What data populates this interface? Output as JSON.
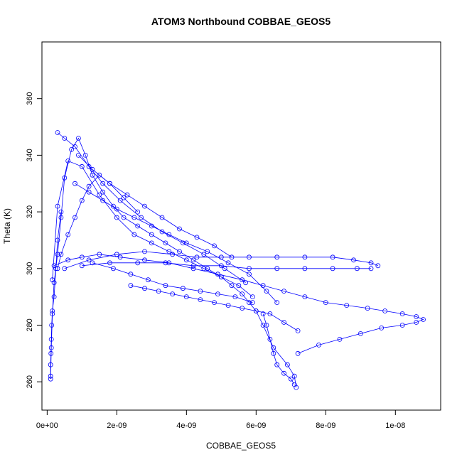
{
  "chart_data": {
    "type": "scatter",
    "title": "ATOM3 Northbound COBBAE_GEOS5",
    "xlabel": "COBBAE_GEOS5",
    "ylabel": "Theta (K)",
    "xlim": [
      -1.5e-10,
      1.13e-08
    ],
    "ylim": [
      250,
      380
    ],
    "x_ticks": [
      {
        "value": 0,
        "label": "0e+00"
      },
      {
        "value": 2e-09,
        "label": "2e-09"
      },
      {
        "value": 4e-09,
        "label": "4e-09"
      },
      {
        "value": 6e-09,
        "label": "6e-09"
      },
      {
        "value": 8e-09,
        "label": "8e-09"
      },
      {
        "value": 1e-08,
        "label": "1e-08"
      }
    ],
    "y_ticks": [
      {
        "value": 260,
        "label": "260"
      },
      {
        "value": 280,
        "label": "280"
      },
      {
        "value": 300,
        "label": "300"
      },
      {
        "value": 320,
        "label": "320"
      },
      {
        "value": 340,
        "label": "340"
      },
      {
        "value": 360,
        "label": "360"
      }
    ],
    "grid": false,
    "marker": "open-circle",
    "color": "#0000ff",
    "series": [
      {
        "x": [
          1e-10,
          1.2e-10,
          1.5e-10,
          2e-10,
          3e-10,
          4e-10,
          5e-10,
          7e-10,
          9e-10,
          1.1e-09,
          1.3e-09,
          1.6e-09,
          1.9e-09,
          2.2e-09,
          2.6e-09,
          3e-09,
          3.4e-09,
          3.8e-09,
          4.2e-09,
          4.6e-09,
          5e-09,
          5.3e-09,
          5.6e-09,
          5.8e-09,
          6e-09,
          6.2e-09,
          6.5e-09,
          6.9e-09,
          7.1e-09,
          7.15e-09
        ],
        "y": [
          261,
          272,
          284,
          295,
          305,
          318,
          332,
          342,
          346,
          340,
          333,
          327,
          322,
          318,
          315,
          312,
          309,
          306,
          303,
          300,
          297,
          294,
          291,
          288,
          285,
          280,
          272,
          266,
          262,
          258
        ]
      },
      {
        "x": [
          1.5e-10,
          3e-10,
          6e-10,
          1e-09,
          1.5e-09,
          2e-09,
          2.5e-09,
          3e-09,
          3.5e-09,
          4e-09,
          4.5e-09,
          5e-09,
          5.5e-09,
          5.9e-09
        ],
        "y": [
          296,
          322,
          338,
          336,
          326,
          318,
          312,
          309,
          306,
          303,
          300,
          297,
          294,
          290
        ]
      },
      {
        "x": [
          3e-10,
          5e-10,
          8e-10,
          1.2e-09,
          1.6e-09,
          2.1e-09,
          2.7e-09,
          3.3e-09,
          3.9e-09,
          4.5e-09,
          5.1e-09,
          5.7e-09
        ],
        "y": [
          348,
          346,
          343,
          336,
          330,
          324,
          318,
          313,
          309,
          305,
          300,
          295
        ]
      },
      {
        "x": [
          2e-10,
          6e-10,
          1e-09,
          1.5e-09,
          2.1e-09,
          2.8e-09,
          3.5e-09,
          4.2e-09,
          4.9e-09,
          5.6e-09,
          6.2e-09,
          6.8e-09,
          7.4e-09,
          8e-09,
          8.6e-09,
          9.2e-09,
          9.7e-09,
          1.02e-08,
          1.06e-08,
          1.08e-08,
          1.06e-08,
          1.02e-08,
          9.6e-09,
          9e-09,
          8.4e-09,
          7.8e-09,
          7.2e-09
        ],
        "y": [
          301,
          303,
          304,
          305,
          304,
          303,
          302,
          300,
          298,
          296,
          294,
          292,
          290,
          288,
          287,
          286,
          285,
          284,
          283,
          282,
          281,
          280,
          279,
          277,
          275,
          273,
          270
        ]
      },
      {
        "x": [
          5e-10,
          1.2e-09,
          2e-09,
          2.8e-09,
          3.6e-09,
          4.3e-09,
          5e-09,
          5.8e-09,
          6.6e-09,
          7.4e-09,
          8.2e-09,
          8.8e-09,
          9.3e-09,
          9.5e-09
        ],
        "y": [
          300,
          303,
          305,
          306,
          305,
          304,
          304,
          304,
          304,
          304,
          304,
          303,
          302,
          301
        ]
      },
      {
        "x": [
          1e-09,
          1.8e-09,
          2.6e-09,
          3.4e-09,
          4.2e-09,
          5e-09,
          5.8e-09,
          6.6e-09,
          7.4e-09,
          8.2e-09,
          8.9e-09,
          9.3e-09
        ],
        "y": [
          301,
          302,
          302,
          302,
          301,
          301,
          300,
          300,
          300,
          300,
          300,
          300
        ]
      },
      {
        "x": [
          1.3e-09,
          1.9e-09,
          2.4e-09,
          2.9e-09,
          3.4e-09,
          3.9e-09,
          4.4e-09,
          4.9e-09,
          5.4e-09,
          5.9e-09
        ],
        "y": [
          302,
          300,
          298,
          296,
          294,
          293,
          292,
          291,
          290,
          288
        ]
      },
      {
        "x": [
          2.4e-09,
          2.8e-09,
          3.2e-09,
          3.6e-09,
          4e-09,
          4.4e-09,
          4.8e-09,
          5.2e-09,
          5.6e-09,
          6e-09,
          6.4e-09,
          6.8e-09,
          7.2e-09
        ],
        "y": [
          294,
          293,
          292,
          291,
          290,
          289,
          288,
          287,
          286,
          285,
          284,
          281,
          278
        ]
      },
      {
        "x": [
          8e-10,
          1.2e-09,
          1.6e-09,
          2e-09,
          2.5e-09,
          3e-09,
          3.5e-09,
          4e-09,
          4.6e-09,
          5.2e-09,
          5.8e-09,
          6.3e-09,
          6.6e-09
        ],
        "y": [
          330,
          327,
          324,
          321,
          318,
          315,
          312,
          309,
          306,
          302,
          298,
          292,
          288
        ]
      },
      {
        "x": [
          1e-10,
          1e-10,
          1.1e-10,
          1.2e-10,
          1.3e-10,
          1.5e-10,
          2e-10,
          2.5e-10,
          3e-10,
          4e-10
        ],
        "y": [
          262,
          266,
          270,
          275,
          280,
          285,
          290,
          300,
          310,
          320
        ]
      },
      {
        "x": [
          9e-10,
          1.3e-09,
          1.8e-09,
          2.3e-09,
          2.8e-09,
          3.3e-09,
          3.8e-09,
          4.3e-09,
          4.8e-09,
          5.3e-09
        ],
        "y": [
          340,
          335,
          330,
          326,
          322,
          318,
          314,
          311,
          308,
          304
        ]
      },
      {
        "x": [
          3e-10,
          4e-10,
          6e-10,
          8e-10,
          1e-09,
          1.2e-09,
          1.5e-09,
          1.8e-09,
          2.2e-09,
          2.6e-09
        ],
        "y": [
          300,
          305,
          312,
          318,
          324,
          329,
          333,
          330,
          325,
          320
        ]
      },
      {
        "x": [
          6.2e-09,
          6.3e-09,
          6.4e-09,
          6.5e-09,
          6.6e-09,
          6.8e-09,
          7e-09,
          7.1e-09
        ],
        "y": [
          284,
          280,
          275,
          270,
          266,
          263,
          261,
          259
        ]
      }
    ]
  }
}
